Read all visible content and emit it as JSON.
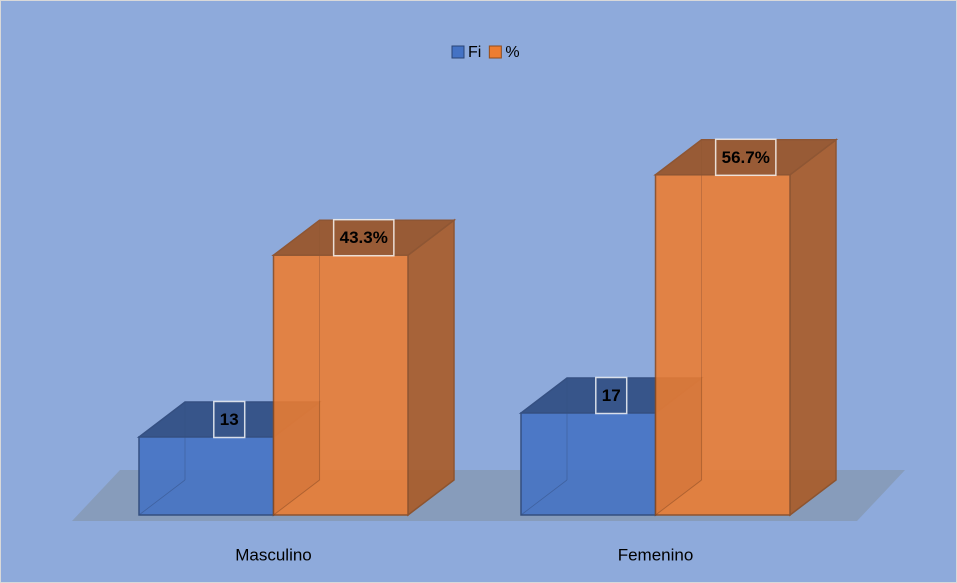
{
  "chart_data": {
    "type": "bar3d",
    "categories": [
      "Masculino",
      "Femenino"
    ],
    "series": [
      {
        "name": "Fi",
        "color": "#4472c4",
        "values": [
          13,
          17
        ]
      },
      {
        "name": "%",
        "color": "#ed7d31",
        "values": [
          43.3,
          56.7
        ],
        "value_labels": [
          "43.3%",
          "56.7%"
        ]
      }
    ],
    "legend": "top"
  }
}
